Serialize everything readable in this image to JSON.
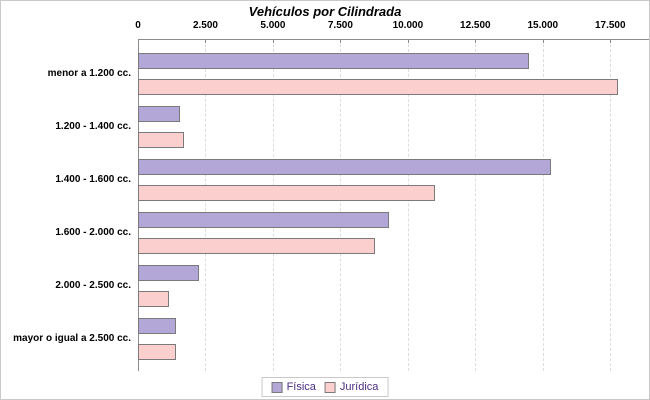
{
  "chart_data": {
    "type": "bar",
    "orientation": "horizontal",
    "title": "Vehículos por Cilindrada",
    "categories": [
      "menor a 1.200 cc.",
      "1.200 - 1.400 cc.",
      "1.400 - 1.600 cc.",
      "1.600 - 2.000 cc.",
      "2.000 - 2.500 cc.",
      "mayor o igual a 2.500 cc."
    ],
    "series": [
      {
        "name": "Física",
        "color": "#b2a7d6",
        "values": [
          14500,
          1550,
          15300,
          9300,
          2250,
          1400
        ]
      },
      {
        "name": "Jurídica",
        "color": "#fccfcf",
        "values": [
          17800,
          1700,
          11000,
          8800,
          1150,
          1400
        ]
      }
    ],
    "xlim": [
      0,
      18750
    ],
    "xticks": [
      0,
      2500,
      5000,
      7500,
      10000,
      12500,
      15000,
      17500
    ],
    "xtick_labels": [
      "0",
      "2.500",
      "5.000",
      "7.500",
      "10.000",
      "12.500",
      "15.000",
      "17.500"
    ],
    "grid": "vertical-dashed",
    "legend_position": "bottom-center",
    "colors": {
      "bar_border": "#7a7a7a",
      "grid": "#dcdcdc",
      "axis": "#8c8c8c",
      "legend_text": "#4b2d82",
      "title": "#000000"
    }
  }
}
